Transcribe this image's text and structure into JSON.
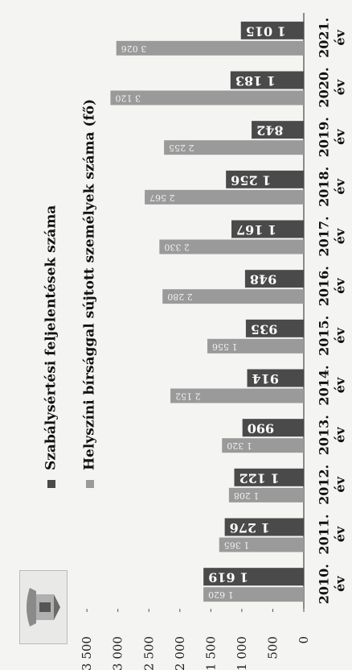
{
  "chart_data": {
    "type": "bar",
    "orientation": "rotated-90",
    "categories": [
      "2010. év",
      "2011. év",
      "2012. év",
      "2013. év",
      "2014. év",
      "2015. év",
      "2016. év",
      "2017. év",
      "2018. év",
      "2019. év",
      "2020. év",
      "2021. év"
    ],
    "series": [
      {
        "name": "Szabálysértési feljelentések száma",
        "values": [
          1619,
          1276,
          1122,
          990,
          914,
          935,
          948,
          1167,
          1256,
          842,
          1183,
          1015
        ],
        "labels": [
          "1 619",
          "1 276",
          "1 122",
          "990",
          "914",
          "935",
          "948",
          "1 167",
          "1 256",
          "842",
          "1 183",
          "1 015"
        ],
        "color": "#4a4a4a"
      },
      {
        "name": "Helyszíni bírsággal sújtott személyek száma (fő)",
        "values": [
          1620,
          1365,
          1208,
          1320,
          2152,
          1556,
          2280,
          2330,
          2567,
          2255,
          3120,
          3026
        ],
        "labels": [
          "1 620",
          "1 365",
          "1 208",
          "1 320",
          "2 152",
          "1 556",
          "2 280",
          "2 330",
          "2 567",
          "2 255",
          "3 120",
          "3 026"
        ],
        "color": "#9a9a9a"
      }
    ],
    "ylim": [
      0,
      3500
    ],
    "yticks": [
      0,
      500,
      1000,
      1500,
      2000,
      2500,
      3000,
      3500
    ],
    "ytick_labels": [
      "0",
      "500",
      "1 000",
      "1 500",
      "2 000",
      "2 500",
      "3 000",
      "3 500"
    ],
    "legend": {
      "entries": [
        "Szabálysértési feljelentések száma",
        "Helyszíni bírsággal sújtott személyek száma (fő)"
      ]
    },
    "grid": false
  }
}
